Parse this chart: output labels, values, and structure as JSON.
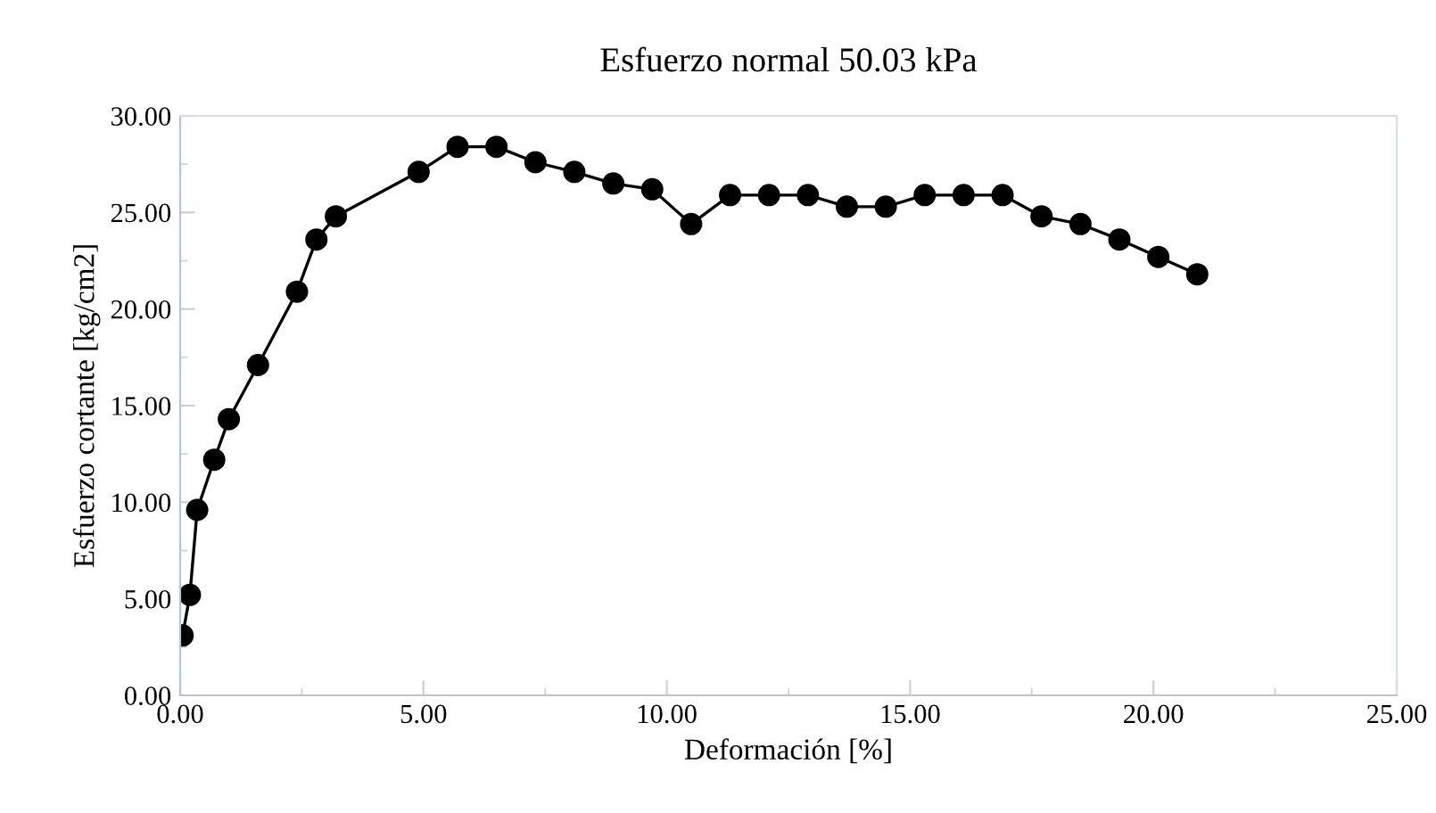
{
  "chart_data": {
    "type": "line",
    "title": "Esfuerzo normal 50.03 kPa",
    "xlabel": "Deformación [%]",
    "ylabel": "Esfuerzo cortante [kg/cm2]",
    "x": [
      0.05,
      0.2,
      0.35,
      0.7,
      1.0,
      1.6,
      2.4,
      2.8,
      3.2,
      4.9,
      5.7,
      6.5,
      7.3,
      8.1,
      8.9,
      9.7,
      10.5,
      11.3,
      12.1,
      12.9,
      13.7,
      14.5,
      15.3,
      16.1,
      16.9,
      17.7,
      18.5,
      19.3,
      20.1,
      20.9
    ],
    "series": [
      {
        "color": "#000000",
        "values": [
          3.1,
          5.2,
          9.6,
          12.2,
          14.3,
          17.1,
          20.9,
          23.6,
          24.8,
          27.1,
          28.4,
          28.4,
          27.6,
          27.1,
          26.5,
          26.2,
          24.4,
          25.9,
          25.9,
          25.9,
          25.3,
          25.3,
          25.9,
          25.9,
          25.9,
          24.8,
          24.4,
          23.6,
          22.7,
          21.8
        ]
      }
    ],
    "xlim": [
      0,
      25
    ],
    "xticks": [
      {
        "value": 0,
        "label": "0.00"
      },
      {
        "value": 5,
        "label": "5.00"
      },
      {
        "value": 10,
        "label": "10.00"
      },
      {
        "value": 15,
        "label": "15.00"
      },
      {
        "value": 20,
        "label": "20.00"
      },
      {
        "value": 25,
        "label": "25.00"
      }
    ],
    "ylim": [
      0,
      30
    ],
    "yticks": [
      {
        "value": 0,
        "label": "0.00"
      },
      {
        "value": 5,
        "label": "5.00"
      },
      {
        "value": 10,
        "label": "10.00"
      },
      {
        "value": 15,
        "label": "15.00"
      },
      {
        "value": 20,
        "label": "20.00"
      },
      {
        "value": 25,
        "label": "25.00"
      },
      {
        "value": 30,
        "label": "30.00"
      }
    ],
    "grid": false,
    "legend": false,
    "marker": "circle",
    "line_style": "solid"
  }
}
